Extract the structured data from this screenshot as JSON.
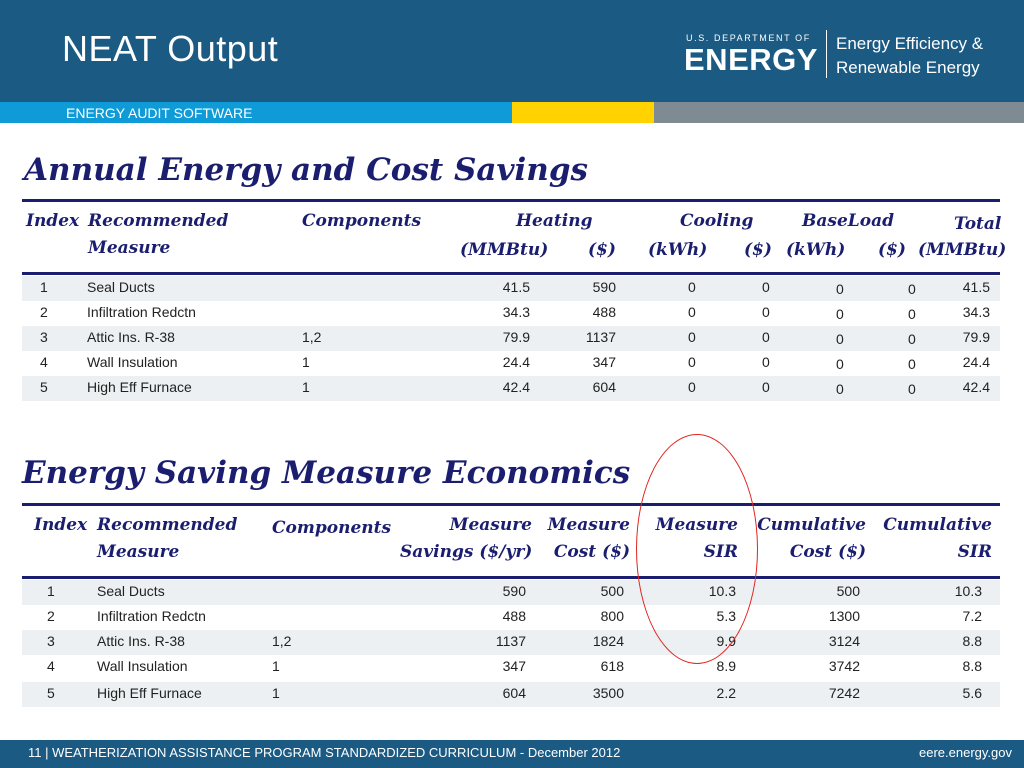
{
  "header": {
    "title": "NEAT Output",
    "agency_small": "U.S. DEPARTMENT OF",
    "agency_big": "ENERGY",
    "office_line1": "Energy Efficiency &",
    "office_line2": "Renewable Energy"
  },
  "ribbon": {
    "label": "ENERGY AUDIT SOFTWARE"
  },
  "colors": {
    "header_blue": "#1a5a83",
    "ribbon_blue": "#0e9bd8",
    "ribbon_yellow": "#ffd200",
    "ribbon_grey": "#7f8b92",
    "heading_navy": "#1b1e6f",
    "highlight_red": "#e2251f"
  },
  "savings": {
    "title": "Annual Energy and Cost Savings",
    "headers": {
      "index": "Index",
      "measure1": "Recommended",
      "measure2": "Measure",
      "components": "Components",
      "heating": "Heating",
      "heating_mmbtu": "(MMBtu)",
      "heating_cost": "($)",
      "cooling": "Cooling",
      "cooling_kwh": "(kWh)",
      "cooling_cost": "($)",
      "baseload": "BaseLoad",
      "baseload_kwh": "(kWh)",
      "baseload_cost": "($)",
      "total": "Total",
      "total_mmbtu": "(MMBtu)"
    },
    "rows": [
      [
        "1",
        "Seal Ducts",
        "",
        "41.5",
        "590",
        "0",
        "0",
        "0",
        "0",
        "41.5"
      ],
      [
        "2",
        "Infiltration Redctn",
        "",
        "34.3",
        "488",
        "0",
        "0",
        "0",
        "0",
        "34.3"
      ],
      [
        "3",
        "Attic Ins. R-38",
        "1,2",
        "79.9",
        "1137",
        "0",
        "0",
        "0",
        "0",
        "79.9"
      ],
      [
        "4",
        "Wall Insulation",
        "1",
        "24.4",
        "347",
        "0",
        "0",
        "0",
        "0",
        "24.4"
      ],
      [
        "5",
        "High Eff Furnace",
        "1",
        "42.4",
        "604",
        "0",
        "0",
        "0",
        "0",
        "42.4"
      ]
    ]
  },
  "economics": {
    "title": "Energy Saving Measure Economics",
    "headers": {
      "index": "Index",
      "measure1": "Recommended",
      "measure2": "Measure",
      "components": "Components",
      "savings1": "Measure",
      "savings2": "Savings ($/yr)",
      "cost1": "Measure",
      "cost2": "Cost ($)",
      "sir1": "Measure",
      "sir2": "SIR",
      "cumcost1": "Cumulative",
      "cumcost2": "Cost ($)",
      "cumsir1": "Cumulative",
      "cumsir2": "SIR"
    },
    "rows": [
      [
        "1",
        "Seal Ducts",
        "",
        "590",
        "500",
        "10.3",
        "500",
        "10.3"
      ],
      [
        "2",
        "Infiltration Redctn",
        "",
        "488",
        "800",
        "5.3",
        "1300",
        "7.2"
      ],
      [
        "3",
        "Attic Ins. R-38",
        "1,2",
        "1137",
        "1824",
        "9.9",
        "3124",
        "8.8"
      ],
      [
        "4",
        "Wall Insulation",
        "1",
        "347",
        "618",
        "8.9",
        "3742",
        "8.8"
      ],
      [
        "5",
        "High Eff Furnace",
        "1",
        "604",
        "3500",
        "2.2",
        "7242",
        "5.6"
      ]
    ]
  },
  "footer": {
    "left": "11 | WEATHERIZATION ASSISTANCE PROGRAM STANDARDIZED CURRICULUM  - December 2012",
    "right": "eere.energy.gov"
  }
}
